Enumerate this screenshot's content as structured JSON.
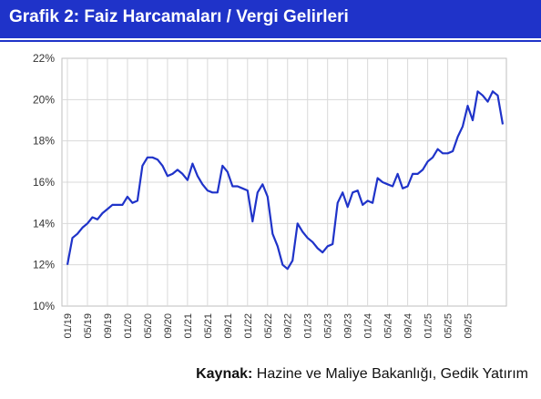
{
  "header": {
    "title": "Grafik 2: Faiz Harcamaları / Vergi Gelirleri",
    "background_color": "#1f33c9"
  },
  "footer": {
    "source_label": "Kaynak:",
    "source_text": "Hazine ve Maliye Bakanlığı, Gedik Yatırım"
  },
  "chart_data": {
    "type": "line",
    "title": "Grafik 2: Faiz Harcamaları / Vergi Gelirleri",
    "xlabel": "",
    "ylabel": "",
    "ylim": [
      0.1,
      0.22
    ],
    "y_ticks": [
      "10%",
      "12%",
      "14%",
      "16%",
      "18%",
      "20%",
      "22%"
    ],
    "x_tick_labels": [
      "01/19",
      "05/19",
      "09/19",
      "01/20",
      "05/20",
      "09/20",
      "01/21",
      "05/21",
      "09/21",
      "01/22",
      "05/22",
      "09/22",
      "01/23",
      "05/23",
      "09/23",
      "01/24",
      "05/24",
      "09/24",
      "01/25",
      "05/25",
      "09/25"
    ],
    "grid": true,
    "line_color": "#1f33c9",
    "series": [
      {
        "x_start": "01/19",
        "values": [
          0.12,
          0.133,
          0.135,
          0.138,
          0.14,
          0.143,
          0.142,
          0.145,
          0.147,
          0.149,
          0.149,
          0.149,
          0.153,
          0.15,
          0.151,
          0.168,
          0.172,
          0.172,
          0.171,
          0.168,
          0.163,
          0.164,
          0.166,
          0.164,
          0.161,
          0.169,
          0.163,
          0.159,
          0.156,
          0.155,
          0.155,
          0.168,
          0.165,
          0.158,
          0.158,
          0.157,
          0.156,
          0.141,
          0.155,
          0.159,
          0.153,
          0.135,
          0.129,
          0.12,
          0.118,
          0.122,
          0.14,
          0.136,
          0.133,
          0.131,
          0.128,
          0.126,
          0.129,
          0.13,
          0.15,
          0.155,
          0.148,
          0.155,
          0.156,
          0.149,
          0.151,
          0.15,
          0.162,
          0.16,
          0.159,
          0.158,
          0.164,
          0.157,
          0.158,
          0.164,
          0.164,
          0.166,
          0.17,
          0.172,
          0.176,
          0.174,
          0.174,
          0.175,
          0.182,
          0.187,
          0.197,
          0.19,
          0.204,
          0.202,
          0.199,
          0.204,
          0.202,
          0.188
        ]
      }
    ]
  }
}
